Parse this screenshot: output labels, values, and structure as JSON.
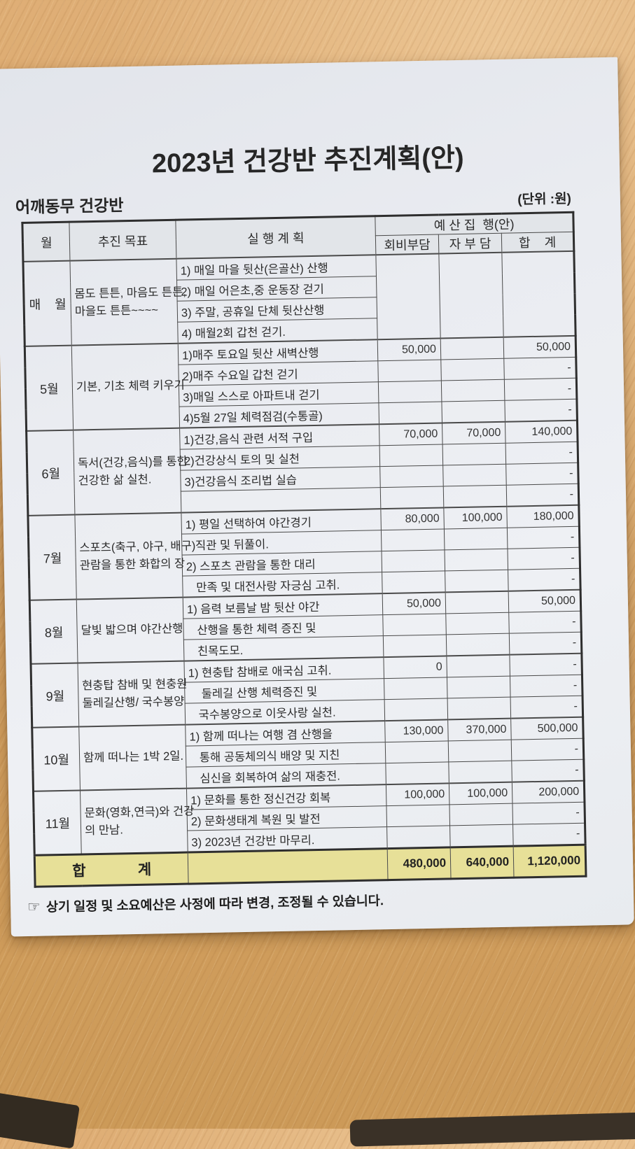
{
  "page": {
    "title": "2023년 건강반 추진계획(안)",
    "subtitle_left": "어깨동무 건강반",
    "unit_label": "(단위 :원)",
    "footnote_icon": "☞",
    "footnote": "상기 일정 및 소요예산은 사정에 따라 변경, 조정될 수 있습니다."
  },
  "table": {
    "headers": {
      "month": "월",
      "goal": "추진 목표",
      "plan": "실 행 계 획",
      "budget_group": "예 산 집  행(안)",
      "fee": "회비부담",
      "self": "자 부 담",
      "total": "합    계"
    },
    "blocks": [
      {
        "month": "매    월",
        "goal_lines": [
          "몸도 튼튼, 마음도 튼튼,",
          "마을도 튼튼~~~~"
        ],
        "goal_align": "left",
        "merged_budget": true,
        "rows": [
          {
            "plan": "1) 매일 마을 뒷산(은골산) 산행",
            "fee": "",
            "self": "",
            "total": ""
          },
          {
            "plan": "2) 매일 어은초,중 운동장 걷기",
            "fee": "",
            "self": "",
            "total": ""
          },
          {
            "plan": "3) 주말, 공휴일 단체 뒷산산행",
            "fee": "",
            "self": "",
            "total": ""
          },
          {
            "plan": "4) 매월2회 갑천 걷기.",
            "fee": "",
            "self": "",
            "total": ""
          }
        ]
      },
      {
        "month": "5월",
        "goal_lines": [
          "기본, 기초 체력 키우기"
        ],
        "goal_align": "center",
        "merged_budget": false,
        "rows": [
          {
            "plan": "1)매주 토요일 뒷산 새벽산행",
            "fee": "50,000",
            "self": "",
            "total": "50,000"
          },
          {
            "plan": "2)매주 수요일 갑천 걷기",
            "fee": "",
            "self": "",
            "total": "-"
          },
          {
            "plan": "3)매일 스스로 아파트내 걷기",
            "fee": "",
            "self": "",
            "total": "-"
          },
          {
            "plan": "4)5월 27일 체력점검(수통골)",
            "fee": "",
            "self": "",
            "total": "-"
          }
        ]
      },
      {
        "month": "6월",
        "goal_lines": [
          "독서(건강,음식)를 통한",
          "건강한 삶 실천."
        ],
        "goal_align": "left",
        "merged_budget": false,
        "rows": [
          {
            "plan": "1)건강,음식 관련 서적 구입",
            "fee": "70,000",
            "self": "70,000",
            "total": "140,000"
          },
          {
            "plan": "2)건강상식 토의 및 실천",
            "fee": "",
            "self": "",
            "total": "-"
          },
          {
            "plan": "3)건강음식 조리법 실습",
            "fee": "",
            "self": "",
            "total": "-"
          },
          {
            "plan": "",
            "fee": "",
            "self": "",
            "total": "-"
          }
        ]
      },
      {
        "month": "7월",
        "goal_lines": [
          "스포츠(축구, 야구, 배구)",
          "관람을 통한 화합의 장"
        ],
        "goal_align": "left",
        "merged_budget": false,
        "rows": [
          {
            "plan": "1) 평일 선택하여 야간경기",
            "fee": "80,000",
            "self": "100,000",
            "total": "180,000"
          },
          {
            "plan": "   직관 및 뒤풀이.",
            "fee": "",
            "self": "",
            "total": "-"
          },
          {
            "plan": "2) 스포츠 관람을 통한 대리",
            "fee": "",
            "self": "",
            "total": "-"
          },
          {
            "plan": "   만족 및 대전사랑 자긍심 고취.",
            "fee": "",
            "self": "",
            "total": "-"
          }
        ]
      },
      {
        "month": "8월",
        "goal_lines": [
          "달빛 밟으며 야간산행"
        ],
        "goal_align": "center",
        "merged_budget": false,
        "rows": [
          {
            "plan": "1) 음력 보름날 밤 뒷산 야간",
            "fee": "50,000",
            "self": "",
            "total": "50,000"
          },
          {
            "plan": "   산행을 통한 체력 증진 및",
            "fee": "",
            "self": "",
            "total": "-"
          },
          {
            "plan": "   친목도모.",
            "fee": "",
            "self": "",
            "total": "-"
          }
        ]
      },
      {
        "month": "9월",
        "goal_lines": [
          "현충탑 참배 및 현충원",
          "둘레길산행/ 국수봉양"
        ],
        "goal_align": "left",
        "merged_budget": false,
        "rows": [
          {
            "plan": "1) 현충탑 참배로 애국심 고취.",
            "fee": "0",
            "self": "",
            "total": "-"
          },
          {
            "plan": "    둘레길 산행 체력증진 및",
            "fee": "",
            "self": "",
            "total": "-"
          },
          {
            "plan": "   국수봉양으로 이웃사랑 실천.",
            "fee": "",
            "self": "",
            "total": "-"
          }
        ]
      },
      {
        "month": "10월",
        "goal_lines": [
          "함께 떠나는 1박 2일."
        ],
        "goal_align": "center",
        "merged_budget": false,
        "rows": [
          {
            "plan": "1) 함께 떠나는 여행 겸 산행을",
            "fee": "130,000",
            "self": "370,000",
            "total": "500,000"
          },
          {
            "plan": "   통해 공동체의식 배양 및 지친",
            "fee": "",
            "self": "",
            "total": "-"
          },
          {
            "plan": "   심신을 회복하여 삶의 재충전.",
            "fee": "",
            "self": "",
            "total": "-"
          }
        ]
      },
      {
        "month": "11월",
        "goal_lines": [
          "문화(영화,연극)와 건강",
          "의 만남."
        ],
        "goal_align": "left",
        "merged_budget": false,
        "rows": [
          {
            "plan": "1) 문화를 통한 정신건강 회복",
            "fee": "100,000",
            "self": "100,000",
            "total": "200,000"
          },
          {
            "plan": "2) 문화생태계 복원 및 발전",
            "fee": "",
            "self": "",
            "total": "-"
          },
          {
            "plan": "3) 2023년 건강반 마무리.",
            "fee": "",
            "self": "",
            "total": "-"
          }
        ]
      }
    ],
    "total_row": {
      "label_left": "합",
      "label_right": "계",
      "fee": "480,000",
      "self": "640,000",
      "total": "1,120,000"
    }
  },
  "colors": {
    "wood": "#d6a164",
    "paper": "#eceef2",
    "table_line": "#3c3c3c",
    "total_row_bg": "#e7e098",
    "text": "#2b2b2b"
  }
}
